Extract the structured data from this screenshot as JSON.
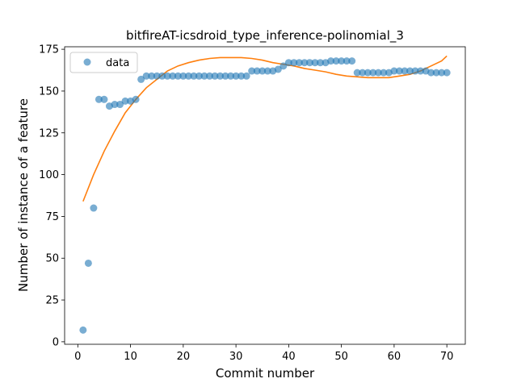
{
  "chart_data": {
    "type": "scatter",
    "title": "bitfireAT-icsdroid_type_inference-polinomial_3",
    "xlabel": "Commit number",
    "ylabel": "Number of instance of a feature",
    "xlim": [
      -2.5,
      73.5
    ],
    "ylim": [
      -1.5,
      176.5
    ],
    "xticks": [
      0,
      10,
      20,
      30,
      40,
      50,
      60,
      70
    ],
    "yticks": [
      0,
      25,
      50,
      75,
      100,
      125,
      150,
      175
    ],
    "grid": false,
    "legend": {
      "placement": "top-left",
      "entries": [
        "data"
      ]
    },
    "series": [
      {
        "name": "data",
        "kind": "scatter",
        "color": "#1f77b4",
        "x": [
          1,
          2,
          3,
          4,
          5,
          6,
          7,
          8,
          9,
          10,
          11,
          12,
          13,
          14,
          15,
          16,
          17,
          18,
          19,
          20,
          21,
          22,
          23,
          24,
          25,
          26,
          27,
          28,
          29,
          30,
          31,
          32,
          33,
          34,
          35,
          36,
          37,
          38,
          39,
          40,
          41,
          42,
          43,
          44,
          45,
          46,
          47,
          48,
          49,
          50,
          51,
          52,
          53,
          54,
          55,
          56,
          57,
          58,
          59,
          60,
          61,
          62,
          63,
          64,
          65,
          66,
          67,
          68,
          69,
          70
        ],
        "y": [
          7,
          47,
          80,
          145,
          145,
          141,
          142,
          142,
          144,
          144,
          145,
          157,
          159,
          159,
          159,
          159,
          159,
          159,
          159,
          159,
          159,
          159,
          159,
          159,
          159,
          159,
          159,
          159,
          159,
          159,
          159,
          159,
          162,
          162,
          162,
          162,
          162,
          163,
          165,
          167,
          167,
          167,
          167,
          167,
          167,
          167,
          167,
          168,
          168,
          168,
          168,
          168,
          161,
          161,
          161,
          161,
          161,
          161,
          161,
          162,
          162,
          162,
          162,
          162,
          162,
          162,
          161,
          161,
          161,
          161
        ]
      },
      {
        "kind": "line",
        "color": "#ff7f0e",
        "x": [
          1,
          3,
          5,
          7,
          9,
          11,
          13,
          15,
          17,
          19,
          21,
          23,
          25,
          27,
          29,
          31,
          33,
          35,
          37,
          39,
          41,
          43,
          45,
          47,
          49,
          51,
          53,
          55,
          57,
          59,
          61,
          63,
          65,
          67,
          69,
          70
        ],
        "y": [
          84,
          100,
          114,
          126,
          137,
          145,
          152,
          157,
          162,
          165,
          167,
          168.5,
          169.5,
          170,
          170,
          170,
          169.5,
          168.5,
          167,
          166,
          165,
          163.5,
          162.5,
          161.5,
          160,
          159,
          158.5,
          158,
          158,
          158,
          159,
          160,
          162,
          165,
          168,
          171
        ]
      }
    ]
  }
}
